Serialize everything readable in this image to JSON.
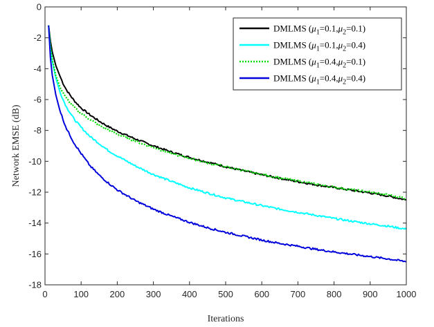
{
  "chart_data": {
    "type": "line",
    "xlabel": "Iterations",
    "ylabel": "Network EMSE (dB)",
    "xlim": [
      0,
      1000
    ],
    "ylim": [
      -18,
      0
    ],
    "x_ticks": [
      0,
      100,
      200,
      300,
      400,
      500,
      600,
      700,
      800,
      900,
      1000
    ],
    "y_ticks": [
      0,
      -2,
      -4,
      -6,
      -8,
      -10,
      -12,
      -14,
      -16,
      -18
    ],
    "grid": false,
    "legend_position": "top-right",
    "x": [
      10,
      15,
      20,
      30,
      40,
      50,
      60,
      80,
      100,
      125,
      150,
      175,
      200,
      250,
      300,
      350,
      400,
      450,
      500,
      550,
      600,
      650,
      700,
      750,
      800,
      850,
      900,
      950,
      1000
    ],
    "series": [
      {
        "name": "DMLMS (μ1=0.1,μ2=0.1)",
        "legend_main": "DMLMS (",
        "mu1": "μ",
        "sub1": "1",
        "eq1": "=0.1,",
        "mu2": "μ",
        "sub2": "2",
        "eq2": "=0.1)",
        "color": "#000000",
        "dash": "solid",
        "values": [
          -1.2,
          -2.2,
          -2.9,
          -3.8,
          -4.4,
          -4.95,
          -5.4,
          -6.05,
          -6.55,
          -7.0,
          -7.4,
          -7.75,
          -8.05,
          -8.55,
          -9.0,
          -9.4,
          -9.75,
          -10.05,
          -10.35,
          -10.62,
          -10.87,
          -11.1,
          -11.32,
          -11.52,
          -11.7,
          -11.88,
          -12.05,
          -12.25,
          -12.5
        ]
      },
      {
        "name": "DMLMS (μ1=0.1,μ2=0.4)",
        "legend_main": "DMLMS (",
        "mu1": "μ",
        "sub1": "1",
        "eq1": "=0.1,",
        "mu2": "μ",
        "sub2": "2",
        "eq2": "=0.4)",
        "color": "#00ffff",
        "dash": "solid",
        "values": [
          -1.2,
          -2.7,
          -3.5,
          -4.6,
          -5.4,
          -6.0,
          -6.5,
          -7.25,
          -7.8,
          -8.4,
          -8.85,
          -9.3,
          -9.65,
          -10.3,
          -10.85,
          -11.3,
          -11.72,
          -12.05,
          -12.37,
          -12.62,
          -12.87,
          -13.1,
          -13.3,
          -13.5,
          -13.7,
          -13.88,
          -14.05,
          -14.2,
          -14.4
        ]
      },
      {
        "name": "DMLMS (μ1=0.4,μ2=0.1)",
        "legend_main": "DMLMS (",
        "mu1": "μ",
        "sub1": "1",
        "eq1": "=0.4,",
        "mu2": "μ",
        "sub2": "2",
        "eq2": "=0.1)",
        "color": "#00dd00",
        "dash": "dotted",
        "values": [
          -1.2,
          -2.6,
          -3.4,
          -4.45,
          -5.1,
          -5.55,
          -5.95,
          -6.5,
          -6.9,
          -7.3,
          -7.65,
          -7.95,
          -8.25,
          -8.7,
          -9.1,
          -9.5,
          -9.8,
          -10.1,
          -10.35,
          -10.6,
          -10.85,
          -11.07,
          -11.28,
          -11.48,
          -11.67,
          -11.85,
          -12.0,
          -12.18,
          -12.4
        ]
      },
      {
        "name": "DMLMS (μ1=0.4,μ2=0.4)",
        "legend_main": "DMLMS (",
        "mu1": "μ",
        "sub1": "1",
        "eq1": "=0.4,",
        "mu2": "μ",
        "sub2": "2",
        "eq2": "=0.4)",
        "color": "#0000dd",
        "dash": "solid",
        "values": [
          -1.2,
          -3.3,
          -4.4,
          -5.7,
          -6.6,
          -7.3,
          -7.9,
          -8.8,
          -9.5,
          -10.3,
          -10.9,
          -11.4,
          -11.85,
          -12.55,
          -13.1,
          -13.55,
          -13.95,
          -14.3,
          -14.6,
          -14.85,
          -15.1,
          -15.32,
          -15.5,
          -15.7,
          -15.87,
          -16.02,
          -16.17,
          -16.32,
          -16.5
        ]
      }
    ]
  }
}
